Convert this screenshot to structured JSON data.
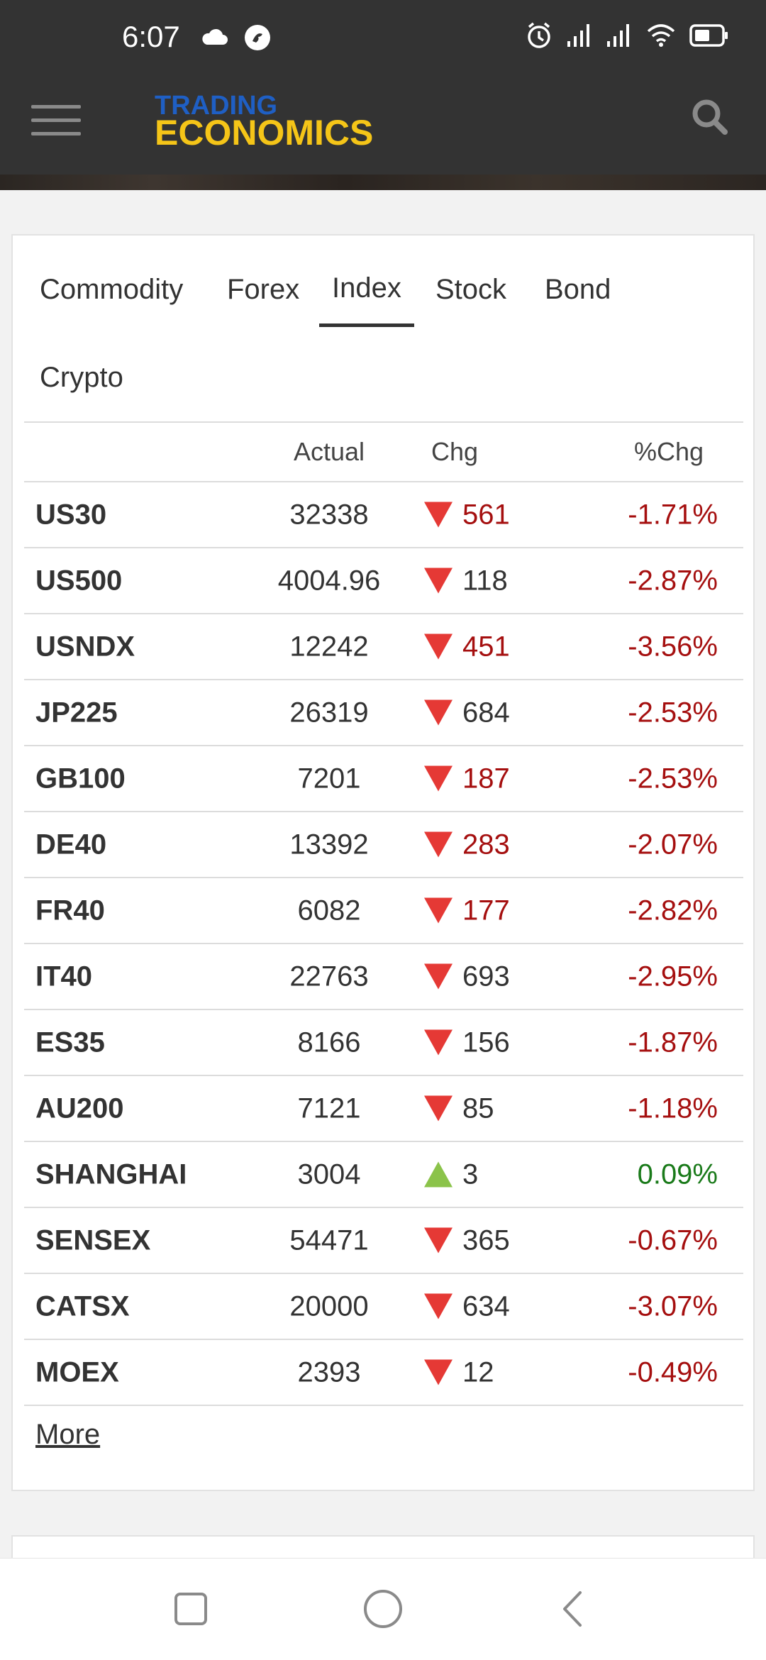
{
  "status_bar": {
    "time": "6:07",
    "left_icons": [
      "cloud-icon",
      "notification-app-icon"
    ],
    "right_icons": [
      "alarm-icon",
      "signal-icon",
      "signal-icon",
      "wifi-icon",
      "battery-icon"
    ]
  },
  "app_bar": {
    "logo_line1": "TRADING",
    "logo_line2": "ECONOMICS",
    "logo_colors": {
      "line1": "#1f5fc4",
      "line2": "#f5c518"
    },
    "menu_icon": "hamburger-menu-icon",
    "search_icon": "search-icon"
  },
  "tabs": [
    {
      "label": "Commodity",
      "active": false
    },
    {
      "label": "Forex",
      "active": false
    },
    {
      "label": "Index",
      "active": true
    },
    {
      "label": "Stock",
      "active": false
    },
    {
      "label": "Bond",
      "active": false
    },
    {
      "label": "Crypto",
      "active": false
    }
  ],
  "table": {
    "headers": {
      "name": "",
      "actual": "Actual",
      "chg": "Chg",
      "pct": "%Chg"
    },
    "rows": [
      {
        "name": "US30",
        "actual": "32338",
        "chg": "561",
        "pct": "-1.71%",
        "direction": "down",
        "chg_colored": true
      },
      {
        "name": "US500",
        "actual": "4004.96",
        "chg": "118",
        "pct": "-2.87%",
        "direction": "down",
        "chg_colored": false
      },
      {
        "name": "USNDX",
        "actual": "12242",
        "chg": "451",
        "pct": "-3.56%",
        "direction": "down",
        "chg_colored": true
      },
      {
        "name": "JP225",
        "actual": "26319",
        "chg": "684",
        "pct": "-2.53%",
        "direction": "down",
        "chg_colored": false
      },
      {
        "name": "GB100",
        "actual": "7201",
        "chg": "187",
        "pct": "-2.53%",
        "direction": "down",
        "chg_colored": true
      },
      {
        "name": "DE40",
        "actual": "13392",
        "chg": "283",
        "pct": "-2.07%",
        "direction": "down",
        "chg_colored": true
      },
      {
        "name": "FR40",
        "actual": "6082",
        "chg": "177",
        "pct": "-2.82%",
        "direction": "down",
        "chg_colored": true
      },
      {
        "name": "IT40",
        "actual": "22763",
        "chg": "693",
        "pct": "-2.95%",
        "direction": "down",
        "chg_colored": false
      },
      {
        "name": "ES35",
        "actual": "8166",
        "chg": "156",
        "pct": "-1.87%",
        "direction": "down",
        "chg_colored": false
      },
      {
        "name": "AU200",
        "actual": "7121",
        "chg": "85",
        "pct": "-1.18%",
        "direction": "down",
        "chg_colored": false
      },
      {
        "name": "SHANGHAI",
        "actual": "3004",
        "chg": "3",
        "pct": "0.09%",
        "direction": "up",
        "chg_colored": false
      },
      {
        "name": "SENSEX",
        "actual": "54471",
        "chg": "365",
        "pct": "-0.67%",
        "direction": "down",
        "chg_colored": false
      },
      {
        "name": "CATSX",
        "actual": "20000",
        "chg": "634",
        "pct": "-3.07%",
        "direction": "down",
        "chg_colored": false
      },
      {
        "name": "MOEX",
        "actual": "2393",
        "chg": "12",
        "pct": "-0.49%",
        "direction": "down",
        "chg_colored": false
      }
    ],
    "more_label": "More"
  },
  "colors": {
    "down": "#a50f0f",
    "down_arrow": "#e53935",
    "up": "#1a7a1a",
    "up_arrow": "#8bc34a",
    "header_bg": "#333333"
  },
  "nav_bar": {
    "buttons": [
      "recent-apps-icon",
      "home-icon",
      "back-icon"
    ]
  }
}
